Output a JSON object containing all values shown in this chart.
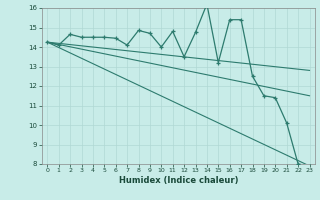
{
  "xlabel": "Humidex (Indice chaleur)",
  "bg_color": "#c8ece8",
  "line_color": "#2d7b6e",
  "grid_color": "#b0d8d4",
  "xlim": [
    -0.5,
    23.5
  ],
  "ylim": [
    8,
    16
  ],
  "xticks": [
    0,
    1,
    2,
    3,
    4,
    5,
    6,
    7,
    8,
    9,
    10,
    11,
    12,
    13,
    14,
    15,
    16,
    17,
    18,
    19,
    20,
    21,
    22,
    23
  ],
  "yticks": [
    8,
    9,
    10,
    11,
    12,
    13,
    14,
    15,
    16
  ],
  "series1_x": [
    0,
    1,
    2,
    3,
    4,
    5,
    6,
    7,
    8,
    9,
    10,
    11,
    12,
    13,
    14,
    15,
    16,
    17,
    18,
    19,
    20,
    21,
    22,
    23
  ],
  "series1_y": [
    14.25,
    14.1,
    14.65,
    14.5,
    14.5,
    14.5,
    14.45,
    14.1,
    14.85,
    14.7,
    14.0,
    14.8,
    13.5,
    14.75,
    16.2,
    13.2,
    15.4,
    15.4,
    12.5,
    11.5,
    11.4,
    10.1,
    8.0,
    7.9
  ],
  "series2_x": [
    0,
    23
  ],
  "series2_y": [
    14.25,
    7.9
  ],
  "series3_x": [
    0,
    23
  ],
  "series3_y": [
    14.25,
    11.5
  ],
  "series4_x": [
    0,
    23
  ],
  "series4_y": [
    14.25,
    12.8
  ]
}
